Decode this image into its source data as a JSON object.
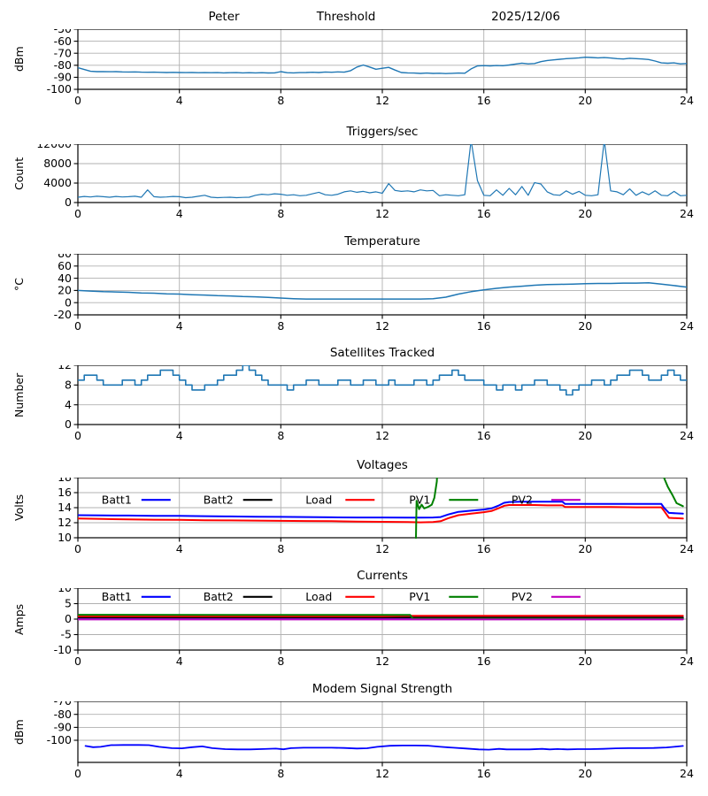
{
  "figure": {
    "background": "#ffffff",
    "grid_color": "#b0b0b0",
    "axis_color": "#000000",
    "default_line_color": "#1f77b4"
  },
  "chart_data": [
    {
      "type": "line",
      "title_parts": [
        "Peter",
        "Threshold",
        "2025/12/06"
      ],
      "ylabel": "dBm",
      "xlim": [
        0,
        24
      ],
      "ylim": [
        -100,
        -50
      ],
      "xticks": [
        0,
        4,
        8,
        12,
        16,
        20,
        24
      ],
      "yticks": [
        -100,
        -90,
        -80,
        -70,
        -60,
        -50
      ],
      "grid": true,
      "series": [
        {
          "color": "#1f77b4",
          "width": 1.4,
          "x0": 0,
          "dx": 0.25,
          "values": [
            -82,
            -83.5,
            -85,
            -85.3,
            -85.2,
            -85.4,
            -85.3,
            -85.5,
            -85.6,
            -85.5,
            -85.7,
            -85.8,
            -85.7,
            -85.9,
            -86,
            -85.9,
            -86,
            -86.1,
            -86,
            -86.2,
            -86.1,
            -86.2,
            -86.1,
            -86.3,
            -86.2,
            -86.1,
            -86.3,
            -86.2,
            -86.3,
            -86.2,
            -86.4,
            -86.3,
            -85.3,
            -86.2,
            -86.3,
            -86.1,
            -86,
            -85.8,
            -86,
            -85.6,
            -85.8,
            -85.5,
            -85.7,
            -84.5,
            -81.5,
            -79.8,
            -81.5,
            -83.3,
            -82.5,
            -81.8,
            -84,
            -86,
            -86.3,
            -86.5,
            -86.8,
            -86.5,
            -86.8,
            -86.6,
            -86.9,
            -86.7,
            -86.5,
            -86.6,
            -83,
            -80.5,
            -80.3,
            -80.5,
            -80.2,
            -80.4,
            -79.8,
            -79,
            -78.2,
            -78.8,
            -78.5,
            -77,
            -76,
            -75.5,
            -75,
            -74.5,
            -74.2,
            -73.8,
            -73.3,
            -73.5,
            -73.8,
            -73.6,
            -74,
            -74.5,
            -74.8,
            -74.2,
            -74.5,
            -74.8,
            -75.2,
            -76.5,
            -78,
            -78.3,
            -78,
            -78.8,
            -78.5
          ]
        }
      ]
    },
    {
      "type": "line",
      "title": "Triggers/sec",
      "ylabel": "Count",
      "xlim": [
        0,
        24
      ],
      "ylim": [
        0,
        12000
      ],
      "xticks": [
        0,
        4,
        8,
        12,
        16,
        20,
        24
      ],
      "yticks": [
        0,
        4000,
        8000,
        12000
      ],
      "grid": true,
      "series": [
        {
          "color": "#1f77b4",
          "width": 1.2,
          "x0": 0,
          "dx": 0.25,
          "values": [
            1100,
            1250,
            1150,
            1300,
            1200,
            1100,
            1250,
            1150,
            1200,
            1300,
            1100,
            2600,
            1200,
            1100,
            1150,
            1250,
            1200,
            1000,
            1100,
            1300,
            1500,
            1100,
            1000,
            1050,
            1100,
            1000,
            1050,
            1100,
            1500,
            1700,
            1600,
            1800,
            1700,
            1500,
            1600,
            1400,
            1500,
            1800,
            2100,
            1600,
            1500,
            1700,
            2200,
            2400,
            2100,
            2300,
            2000,
            2200,
            1900,
            3900,
            2500,
            2300,
            2400,
            2200,
            2600,
            2400,
            2500,
            1400,
            1600,
            1500,
            1400,
            1600,
            12800,
            4500,
            1500,
            1400,
            2600,
            1500,
            2900,
            1600,
            3300,
            1500,
            4100,
            3800,
            2200,
            1600,
            1500,
            2400,
            1700,
            2300,
            1500,
            1400,
            1600,
            12800,
            2400,
            2200,
            1600,
            2800,
            1500,
            2200,
            1600,
            2400,
            1500,
            1400,
            2300,
            1400,
            1500
          ]
        }
      ]
    },
    {
      "type": "line",
      "title": "Temperature",
      "ylabel": "°C",
      "xlim": [
        0,
        24
      ],
      "ylim": [
        -20,
        80
      ],
      "xticks": [
        0,
        4,
        8,
        12,
        16,
        20,
        24
      ],
      "yticks": [
        -20,
        0,
        20,
        40,
        60,
        80
      ],
      "grid": true,
      "series": [
        {
          "color": "#1f77b4",
          "width": 1.5,
          "x0": 0,
          "dx": 0.5,
          "values": [
            20,
            19,
            18,
            17.5,
            17,
            16,
            15.5,
            14.5,
            14,
            13,
            12.5,
            11.5,
            11,
            10,
            9.5,
            8.5,
            7.5,
            6.5,
            6,
            6,
            6,
            6,
            6,
            6,
            6,
            6,
            6,
            6,
            6.5,
            9,
            14,
            18,
            21,
            23.5,
            25.5,
            27,
            28.5,
            29.5,
            30,
            30.5,
            31,
            31.5,
            31.5,
            32,
            32,
            32.5,
            30.5,
            28,
            25.5
          ]
        }
      ]
    },
    {
      "type": "line",
      "title": "Satellites Tracked",
      "ylabel": "Number",
      "xlim": [
        0,
        24
      ],
      "ylim": [
        0,
        12
      ],
      "xticks": [
        0,
        4,
        8,
        12,
        16,
        20,
        24
      ],
      "yticks": [
        0,
        4,
        8,
        12
      ],
      "grid": true,
      "step": true,
      "series": [
        {
          "color": "#1f77b4",
          "width": 1.6,
          "x0": 0,
          "dx": 0.25,
          "values": [
            9,
            10,
            10,
            9,
            8,
            8,
            8,
            9,
            9,
            8,
            9,
            10,
            10,
            11,
            11,
            10,
            9,
            8,
            7,
            7,
            8,
            8,
            9,
            10,
            10,
            11,
            12,
            11,
            10,
            9,
            8,
            8,
            8,
            7,
            8,
            8,
            9,
            9,
            8,
            8,
            8,
            9,
            9,
            8,
            8,
            9,
            9,
            8,
            8,
            9,
            8,
            8,
            8,
            9,
            9,
            8,
            9,
            10,
            10,
            11,
            10,
            9,
            9,
            9,
            8,
            8,
            7,
            8,
            8,
            7,
            8,
            8,
            9,
            9,
            8,
            8,
            7,
            6,
            7,
            8,
            8,
            9,
            9,
            8,
            9,
            10,
            10,
            11,
            11,
            10,
            9,
            9,
            10,
            11,
            10,
            9,
            9
          ]
        }
      ]
    },
    {
      "type": "line",
      "title": "Voltages",
      "ylabel": "Volts",
      "xlim": [
        0,
        24
      ],
      "ylim": [
        10,
        18
      ],
      "xticks": [
        0,
        4,
        8,
        12,
        16,
        20,
        24
      ],
      "yticks": [
        10,
        12,
        14,
        16,
        18
      ],
      "grid": true,
      "legend": [
        {
          "label": "Batt1",
          "color": "#0000ff"
        },
        {
          "label": "Batt2",
          "color": "#000000"
        },
        {
          "label": "Load",
          "color": "#ff0000"
        },
        {
          "label": "PV1",
          "color": "#008000"
        },
        {
          "label": "PV2",
          "color": "#bf00bf"
        }
      ],
      "legend_x": [
        0.039,
        0.206,
        0.374,
        0.544,
        0.712
      ],
      "legend_y": 0.37,
      "series": [
        {
          "name": "Batt1",
          "color": "#0000ff",
          "width": 2,
          "x": [
            0,
            1,
            2,
            3,
            4,
            5,
            6,
            7,
            8,
            9,
            10,
            11,
            12,
            13,
            13.5,
            14,
            14.3,
            14.6,
            15,
            15.5,
            16,
            16.3,
            16.6,
            16.8,
            17,
            17.5,
            18,
            18.5,
            19,
            19.1,
            19.2,
            20,
            21,
            22,
            23,
            23.1,
            23.3,
            23.6,
            23.85
          ],
          "values": [
            13.0,
            12.97,
            12.95,
            12.92,
            12.9,
            12.87,
            12.83,
            12.8,
            12.78,
            12.75,
            12.72,
            12.7,
            12.7,
            12.68,
            12.67,
            12.7,
            12.75,
            13.1,
            13.45,
            13.6,
            13.75,
            13.9,
            14.3,
            14.65,
            14.75,
            14.8,
            14.8,
            14.8,
            14.8,
            14.8,
            14.5,
            14.5,
            14.5,
            14.5,
            14.5,
            14.0,
            13.3,
            13.25,
            13.2
          ]
        },
        {
          "name": "Batt2",
          "color": "#000000",
          "width": 2,
          "x": [
            0,
            23.85
          ],
          "values": [
            0,
            0
          ]
        },
        {
          "name": "Load",
          "color": "#ff0000",
          "width": 2,
          "x": [
            0,
            1,
            2,
            3,
            4,
            5,
            6,
            7,
            8,
            9,
            10,
            11,
            12,
            13,
            13.5,
            14,
            14.3,
            14.6,
            15,
            15.5,
            16,
            16.3,
            16.6,
            16.8,
            17,
            17.5,
            18,
            18.5,
            19,
            19.1,
            19.2,
            20,
            21,
            22,
            23,
            23.1,
            23.3,
            23.6,
            23.85
          ],
          "values": [
            12.55,
            12.5,
            12.45,
            12.4,
            12.38,
            12.33,
            12.3,
            12.28,
            12.25,
            12.22,
            12.2,
            12.15,
            12.12,
            12.1,
            12.05,
            12.1,
            12.2,
            12.6,
            13.0,
            13.2,
            13.4,
            13.55,
            13.95,
            14.25,
            14.35,
            14.35,
            14.35,
            14.3,
            14.3,
            14.3,
            14.1,
            14.1,
            14.1,
            14.05,
            14.05,
            13.6,
            12.65,
            12.6,
            12.55
          ]
        },
        {
          "name": "PV1",
          "color": "#008000",
          "width": 2,
          "x": [
            0,
            13.25,
            13.3,
            13.35,
            13.45,
            13.55,
            13.65,
            13.8,
            13.95,
            14.05,
            14.15,
            14.3,
            23.0,
            23.1,
            23.25,
            23.45,
            23.6,
            23.85
          ],
          "values": [
            0,
            0,
            5,
            14.9,
            13.8,
            14.4,
            13.9,
            14.1,
            14.4,
            15.3,
            17.5,
            30,
            30,
            18,
            16.8,
            15.6,
            14.6,
            14.2
          ]
        },
        {
          "name": "PV2",
          "color": "#bf00bf",
          "width": 2,
          "x": [
            0,
            23.85
          ],
          "values": [
            0,
            0
          ]
        }
      ]
    },
    {
      "type": "line",
      "title": "Currents",
      "ylabel": "Amps",
      "xlim": [
        0,
        24
      ],
      "ylim": [
        -10,
        10
      ],
      "xticks": [
        0,
        4,
        8,
        12,
        16,
        20,
        24
      ],
      "yticks": [
        -10,
        -5,
        0,
        5,
        10
      ],
      "grid": true,
      "legend": [
        {
          "label": "Batt1",
          "color": "#0000ff"
        },
        {
          "label": "Batt2",
          "color": "#000000"
        },
        {
          "label": "Load",
          "color": "#ff0000"
        },
        {
          "label": "PV1",
          "color": "#008000"
        },
        {
          "label": "PV2",
          "color": "#bf00bf"
        }
      ],
      "legend_x": [
        0.039,
        0.206,
        0.374,
        0.544,
        0.712
      ],
      "legend_y": 0.14,
      "series": [
        {
          "name": "Batt1",
          "color": "#0000ff",
          "width": 2,
          "x": [
            0,
            23.85
          ],
          "values": [
            0.45,
            0.45
          ]
        },
        {
          "name": "Batt2",
          "color": "#000000",
          "width": 2,
          "x": [
            0,
            23.85
          ],
          "values": [
            0.55,
            0.55
          ]
        },
        {
          "name": "Load",
          "color": "#ff0000",
          "width": 2,
          "x": [
            0,
            6,
            12,
            13.2,
            16,
            20,
            23.85
          ],
          "values": [
            0.95,
            0.9,
            0.95,
            1.05,
            1.05,
            1.05,
            1.1
          ]
        },
        {
          "name": "PV1",
          "color": "#008000",
          "width": 2,
          "x": [
            0,
            13.1,
            13.2,
            23.85
          ],
          "values": [
            1.4,
            1.35,
            0.15,
            0.1
          ]
        },
        {
          "name": "PV2",
          "color": "#bf00bf",
          "width": 2,
          "x": [
            0,
            23.85
          ],
          "values": [
            -0.1,
            -0.1
          ]
        }
      ]
    },
    {
      "type": "line",
      "title": "Modem Signal Strength",
      "ylabel": "dBm",
      "xlim": [
        0,
        24
      ],
      "ylim": [
        -117,
        -70
      ],
      "xticks": [
        0,
        4,
        8,
        12,
        16,
        20,
        24
      ],
      "yticks": [
        -100,
        -90,
        -80,
        -70
      ],
      "grid": true,
      "series": [
        {
          "color": "#0000ff",
          "width": 1.8,
          "x": [
            0.3,
            0.6,
            0.9,
            1.3,
            1.8,
            2.4,
            2.8,
            3.2,
            3.7,
            4.1,
            4.5,
            4.9,
            5.3,
            5.8,
            6.3,
            6.8,
            7.3,
            7.8,
            8.1,
            8.4,
            8.9,
            9.5,
            10,
            10.5,
            11,
            11.4,
            11.8,
            12.3,
            12.8,
            13.3,
            13.8,
            14.3,
            14.8,
            15.3,
            15.8,
            16.2,
            16.6,
            16.9,
            17.3,
            17.8,
            18.3,
            18.6,
            18.9,
            19.3,
            19.7,
            20.2,
            20.7,
            21.2,
            21.7,
            22.2,
            22.7,
            23.2,
            23.6,
            23.85
          ],
          "values": [
            -104.3,
            -105.3,
            -105,
            -103.7,
            -103.6,
            -103.6,
            -103.7,
            -105,
            -106,
            -106.2,
            -105.3,
            -104.7,
            -106,
            -106.8,
            -107,
            -107,
            -106.7,
            -106.4,
            -106.9,
            -106,
            -105.7,
            -105.7,
            -105.7,
            -105.9,
            -106.3,
            -106.1,
            -105,
            -104.2,
            -104,
            -104,
            -104.1,
            -105,
            -105.7,
            -106.3,
            -107,
            -107.2,
            -106.6,
            -107,
            -107,
            -107,
            -106.6,
            -107,
            -106.7,
            -107,
            -106.8,
            -106.8,
            -106.6,
            -106.2,
            -106,
            -106,
            -105.9,
            -105.5,
            -104.8,
            -104.3
          ]
        }
      ]
    }
  ]
}
